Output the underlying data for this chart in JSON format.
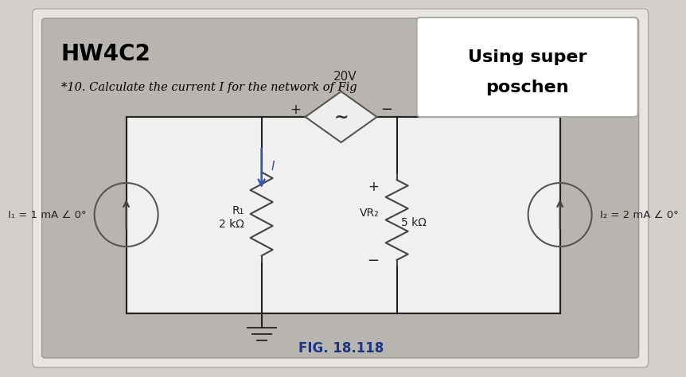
{
  "title": "HW4C2",
  "subtitle": "*10. Calculate the current I for the network of Fig",
  "label_super": "Using super",
  "label_poschen": "poschen",
  "fig_label": "FIG. 18.118",
  "voltage_label": "20V",
  "current_I_label": "I",
  "R1_label": "R₁",
  "R1_value": "2 kΩ",
  "R2_label": "VR₂",
  "R2_value": "5 kΩ",
  "I1_label": "I₁ = 1 mA ∠ 0°",
  "I2_label": "I₂ = 2 mA ∠ 0°",
  "bg_outer": "#d4cfca",
  "bg_inner": "#b8b4b0",
  "circuit_bg": "#f2f0ee",
  "wire_color": "#222222",
  "text_color": "#000000",
  "blue_arrow": "#3355aa",
  "fig_text_color": "#1a3580",
  "super_box_color": "#ffffff",
  "super_text_color": "#000000",
  "resistor_color": "#444444"
}
